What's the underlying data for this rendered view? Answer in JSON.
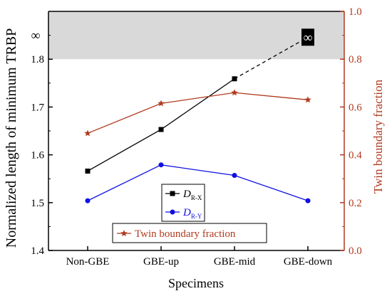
{
  "chart_data": {
    "type": "line",
    "categories": [
      "Non-GBE",
      "GBE-up",
      "GBE-mid",
      "GBE-down"
    ],
    "xlabel": "Specimens",
    "ylabel_left": "Normalized length of minimum TRBP",
    "ylabel_right": "Twin boundary fraction",
    "ylim_left": [
      1.4,
      1.9
    ],
    "ylim_right": [
      0.0,
      1.0
    ],
    "yticks_left": [
      "1.4",
      "1.5",
      "1.6",
      "1.7",
      "1.8"
    ],
    "yticks_right": [
      "0.0",
      "0.2",
      "0.4",
      "0.6",
      "0.8",
      "1.0"
    ],
    "infinity_symbol": "∞",
    "infinity_band": {
      "from": 1.8,
      "to": 1.9,
      "color": "#d9d9d9"
    },
    "series": [
      {
        "name_main": "D",
        "name_sub": "R-X",
        "axis": "left",
        "color": "#000000",
        "marker": "square",
        "values": [
          1.566,
          1.653,
          1.759,
          null
        ],
        "extension_dashed": {
          "from_category": "GBE-mid",
          "to_category": "GBE-down",
          "to_label": "∞"
        }
      },
      {
        "name_main": "D",
        "name_sub": "R-Y",
        "axis": "left",
        "color": "#1010e0",
        "marker": "circle",
        "values": [
          1.504,
          1.579,
          1.557,
          1.504
        ]
      },
      {
        "name": "Twin boundary fraction",
        "axis": "right",
        "color": "#b03a1e",
        "marker": "star",
        "values": [
          0.49,
          0.615,
          0.66,
          0.63
        ]
      }
    ],
    "legend_placement": "bottom-center"
  }
}
